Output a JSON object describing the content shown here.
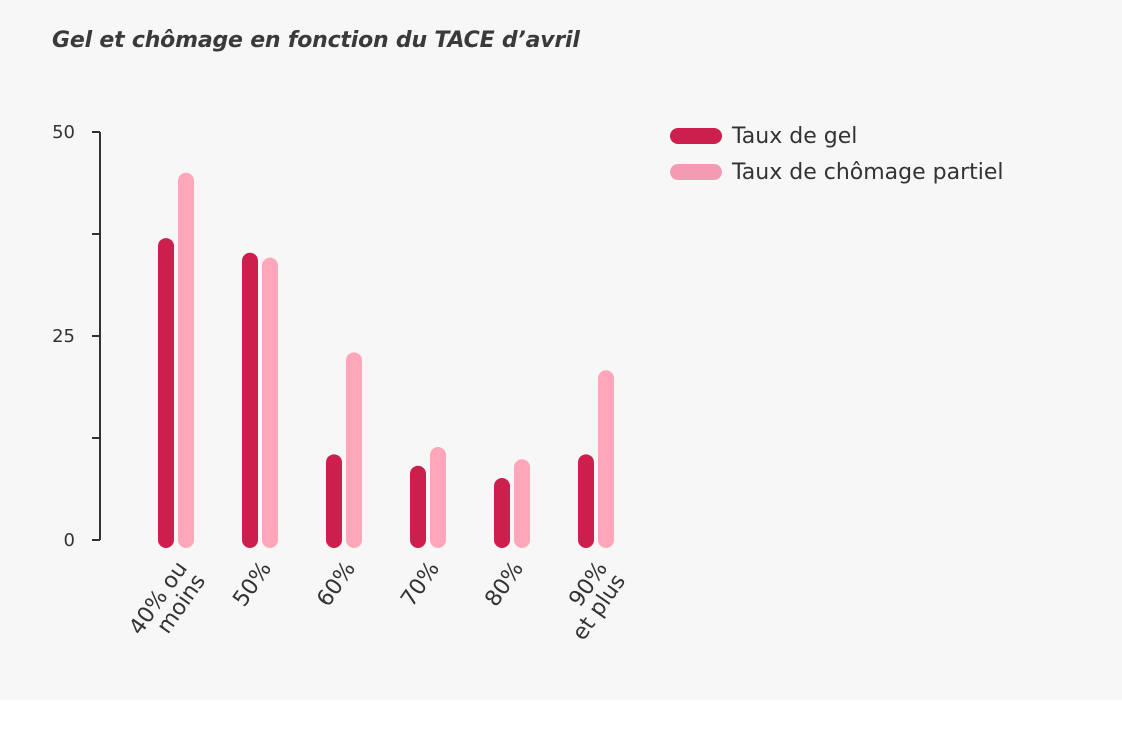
{
  "title": "Gel et chômage en fonction du TACE d’avril",
  "colors": {
    "gel": "#cc1f4e",
    "chomage": "#ffa6bb",
    "legend_chomage": "#f39bb3",
    "axis": "#333333",
    "background": "#f7f7f7"
  },
  "chart_data": {
    "type": "bar",
    "categories": [
      "40% ou moins",
      "50%",
      "60%",
      "70%",
      "80%",
      "90% et plus"
    ],
    "category_lines": [
      [
        "40% ou",
        "moins"
      ],
      [
        "50%"
      ],
      [
        "60%"
      ],
      [
        "70%"
      ],
      [
        "80%"
      ],
      [
        "90%",
        "et plus"
      ]
    ],
    "series": [
      {
        "name": "Taux de gel",
        "values": [
          37,
          35.2,
          10.5,
          9.1,
          7.6,
          10.5
        ]
      },
      {
        "name": "Taux de chômage partiel",
        "values": [
          45,
          34.6,
          23,
          11.4,
          9.9,
          20.8
        ]
      }
    ],
    "ylim": [
      0,
      50
    ],
    "yticks": [
      0,
      25,
      50
    ],
    "minor_ticks": [
      12.5,
      37.5
    ],
    "legend_position": "top-right",
    "xlabel": "",
    "ylabel": ""
  }
}
